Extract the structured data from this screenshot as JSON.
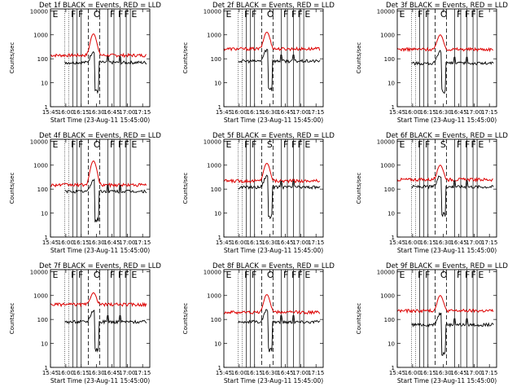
{
  "panel_titles": [
    "Det 1f BLACK = Events, RED = LLD",
    "Det 2f BLACK = Events, RED = LLD",
    "Det 3f BLACK = Events, RED = LLD",
    "Det 4f BLACK = Events, RED = LLD",
    "Det 5f BLACK = Events, RED = LLD",
    "Det 6f BLACK = Events, RED = LLD",
    "Det 7f BLACK = Events, RED = LLD",
    "Det 8f BLACK = Events, RED = LLD",
    "Det 9f BLACK = Events, RED = LLD"
  ],
  "colors": {
    "events": "#000000",
    "lld": "#dd0000",
    "background": "#ffffff"
  },
  "chart_data": {
    "type": "line",
    "yscale": "log",
    "ylabel": "Counts/sec",
    "xlabel": "Start Time (23-Aug-11 15:45:00)",
    "xticks": [
      "15:45",
      "16:00",
      "16:15",
      "16:30",
      "16:45",
      "17:00",
      "17:15"
    ],
    "yticks": [
      "1",
      "10",
      "100",
      "1000",
      "10000"
    ],
    "x_range": [
      "15:45",
      "17:22"
    ],
    "y_range": [
      1,
      12000
    ],
    "panels": [
      {
        "detector": "1f",
        "lld_base": 140,
        "lld_peak": 1100,
        "events_base": 70,
        "markers": [
          "E",
          "F",
          "F",
          "O",
          "F",
          "F",
          "F",
          "E"
        ]
      },
      {
        "detector": "2f",
        "lld_base": 260,
        "lld_peak": 1300,
        "events_base": 80,
        "markers": [
          "E",
          "F",
          "F",
          "O",
          "F",
          "F",
          "F",
          "E"
        ]
      },
      {
        "detector": "3f",
        "lld_base": 250,
        "lld_peak": 1000,
        "events_base": 65,
        "markers": [
          "E",
          "F",
          "F",
          "O",
          "F",
          "F",
          "F",
          "E"
        ]
      },
      {
        "detector": "4f",
        "lld_base": 150,
        "lld_peak": 1500,
        "events_base": 80,
        "markers": [
          "E",
          "F",
          "F",
          "O",
          "F",
          "F",
          "F",
          "E"
        ]
      },
      {
        "detector": "5f",
        "lld_base": 220,
        "lld_peak": 1200,
        "events_base": 120,
        "markers": [
          "E",
          "F",
          "F",
          "S",
          "F",
          "F",
          "F",
          "E"
        ]
      },
      {
        "detector": "6f",
        "lld_base": 250,
        "lld_peak": 1000,
        "events_base": 125,
        "markers": [
          "E",
          "F",
          "F",
          "S",
          "F",
          "F",
          "F",
          "E"
        ]
      },
      {
        "detector": "7f",
        "lld_base": 420,
        "lld_peak": 1300,
        "events_base": 80,
        "markers": [
          "E",
          "F",
          "F",
          "O",
          "F",
          "F",
          "F",
          "E"
        ]
      },
      {
        "detector": "8f",
        "lld_base": 200,
        "lld_peak": 1100,
        "events_base": 80,
        "markers": [
          "E",
          "F",
          "F",
          "O",
          "F",
          "F",
          "F",
          "E"
        ]
      },
      {
        "detector": "9f",
        "lld_base": 230,
        "lld_peak": 1000,
        "events_base": 60,
        "markers": [
          "E",
          "F",
          "F",
          "O",
          "F",
          "F",
          "F",
          "E"
        ]
      }
    ]
  }
}
